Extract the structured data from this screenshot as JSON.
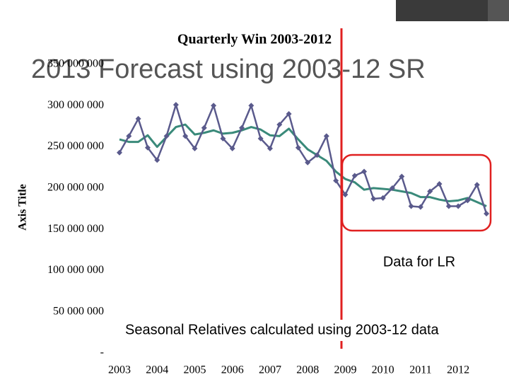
{
  "heading": "2013 Forecast using 2003-12 SR",
  "chart_data": {
    "type": "line",
    "title": "Quarterly Win 2003-2012",
    "y_axis_label": "Axis Title",
    "categories": [
      "2003",
      null,
      null,
      null,
      "2004",
      null,
      null,
      null,
      "2005",
      null,
      null,
      null,
      "2006",
      null,
      null,
      null,
      "2007",
      null,
      null,
      null,
      "2008",
      null,
      null,
      null,
      "2009",
      null,
      null,
      null,
      "2010",
      null,
      null,
      null,
      "2011",
      null,
      null,
      null,
      "2012",
      null,
      null,
      null
    ],
    "series": [
      {
        "color": "#5a5a8c",
        "marker": "diamond",
        "values": [
          243000000,
          263000000,
          284000000,
          249000000,
          234000000,
          263000000,
          301000000,
          263000000,
          248000000,
          273000000,
          300000000,
          260000000,
          248000000,
          273000000,
          300000000,
          260000000,
          248000000,
          277000000,
          290000000,
          249000000,
          231000000,
          240000000,
          263000000,
          209000000,
          192000000,
          215000000,
          220000000,
          187000000,
          188000000,
          200000000,
          214000000,
          178000000,
          177000000,
          196000000,
          205000000,
          178000000,
          178000000,
          185000000,
          204000000,
          169000000
        ]
      },
      {
        "color": "#3a8a7a",
        "values": [
          259000000,
          256000000,
          256000000,
          264000000,
          250000000,
          262000000,
          274000000,
          277000000,
          265000000,
          267000000,
          270000000,
          266000000,
          267000000,
          270000000,
          274000000,
          271000000,
          264000000,
          263000000,
          272000000,
          259000000,
          247000000,
          240000000,
          233000000,
          220000000,
          211000000,
          207000000,
          198000000,
          200000000,
          199000000,
          198000000,
          196000000,
          194000000,
          189000000,
          189000000,
          186000000,
          184000000,
          185000000,
          188000000,
          183000000,
          178000000
        ]
      }
    ],
    "ylim": [
      0,
      350000000
    ],
    "yticks": [
      {
        "value": 0,
        "label": "-"
      },
      {
        "value": 50000000,
        "label": "50 000 000"
      },
      {
        "value": 100000000,
        "label": "100 000 000"
      },
      {
        "value": 150000000,
        "label": "150 000 000"
      },
      {
        "value": 200000000,
        "label": "200 000 000"
      },
      {
        "value": 250000000,
        "label": "250 000 000"
      },
      {
        "value": 300000000,
        "label": "300 000 000"
      },
      {
        "value": 350000000,
        "label": "350 000 000"
      }
    ],
    "grid": false,
    "annotations": [
      "Data for LR",
      "Seasonal Relatives calculated using 2003-12 data"
    ]
  }
}
